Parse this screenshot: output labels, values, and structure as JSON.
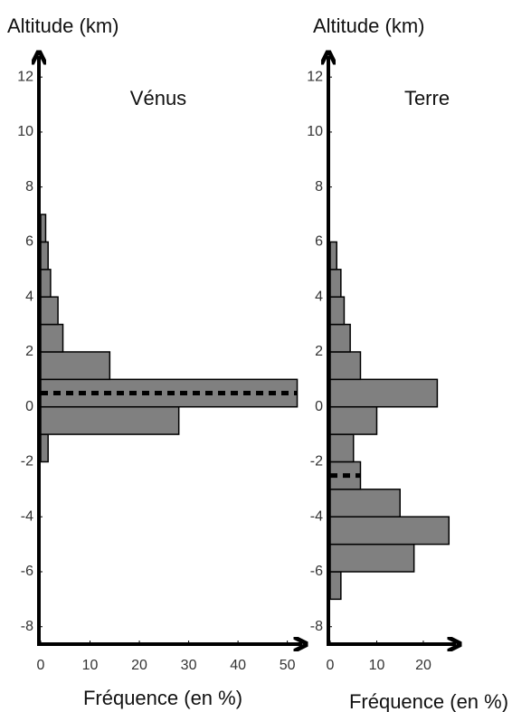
{
  "chart_data": [
    {
      "type": "histogram",
      "orientation": "horizontal",
      "title": "Vénus",
      "ylabel": "Altitude (km)",
      "xlabel": "Fréquence (en %)",
      "bins": [
        -2,
        -1,
        0,
        1,
        2,
        3,
        4,
        5,
        6,
        7
      ],
      "counts": [
        1.5,
        28,
        52,
        14,
        4.5,
        3.5,
        2,
        1.5,
        1
      ],
      "mean": 0.5,
      "color": "#808080",
      "xlim": [
        0,
        53
      ],
      "xticks": [
        0,
        10,
        20,
        30,
        40,
        50
      ],
      "ylim": [
        -8.7,
        12.5
      ],
      "yticks": [
        -8,
        -6,
        -4,
        -2,
        0,
        2,
        4,
        6,
        8,
        10,
        12
      ]
    },
    {
      "type": "histogram",
      "orientation": "horizontal",
      "title": "Terre",
      "ylabel": "Altitude (km)",
      "xlabel": "Fréquence (en %)",
      "bins": [
        -7,
        -6,
        -5,
        -4,
        -3,
        -2,
        -1,
        0,
        1,
        2,
        3,
        4,
        5,
        6
      ],
      "counts": [
        2.3,
        18,
        25.5,
        15,
        6.5,
        5,
        10,
        23,
        6.5,
        4.3,
        3,
        2.3,
        1.4
      ],
      "mean": -2.5,
      "color": "#808080",
      "xlim": [
        0,
        27
      ],
      "xticks": [
        0,
        10,
        20
      ],
      "ylim": [
        -8.7,
        12.5
      ],
      "yticks": [
        -8,
        -6,
        -4,
        -2,
        0,
        2,
        4,
        6,
        8,
        10,
        12
      ]
    }
  ]
}
